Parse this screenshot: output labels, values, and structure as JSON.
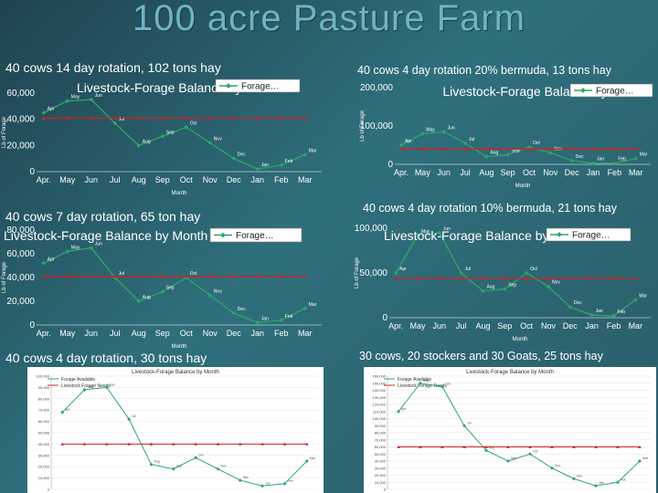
{
  "slide_title": "100 acre Pasture Farm",
  "months": [
    "Apr.",
    "May",
    "Jun",
    "Jul",
    "Aug",
    "Sep",
    "Oct",
    "Nov",
    "Dec",
    "Jan",
    "Feb",
    "Mar"
  ],
  "point_months": [
    "Apr",
    "May",
    "Jun",
    "Jul",
    "Aug",
    "Sep",
    "Oct",
    "Nov",
    "Dec",
    "Jan",
    "Feb",
    "Mar"
  ],
  "legend": {
    "forage": "Forage…",
    "forage_available": "Forage Available",
    "livestock_needs": "Livestock Forage Needs"
  },
  "colors": {
    "forage": "#2fa66a",
    "needs": "#d42020"
  },
  "chart_data": [
    {
      "id": "p1",
      "type": "line",
      "caption": "40 cows 14 day rotation, 102 tons hay",
      "title": "Livestock-Forage Balance by Month",
      "xlabel": "Month",
      "ylabel": "Lb of Forage",
      "ylim": [
        0,
        60000
      ],
      "yticks": [
        0,
        20000,
        40000,
        60000
      ],
      "ytick_labels": [
        "0",
        "20,000",
        "40,000",
        "60,000"
      ],
      "series": [
        {
          "key": "forage",
          "values": [
            45000,
            54000,
            55000,
            37000,
            20000,
            27000,
            34000,
            22000,
            10000,
            2000,
            5000,
            13000
          ]
        },
        {
          "key": "needs",
          "values": [
            41000,
            41000,
            41000,
            41000,
            41000,
            41000,
            41000,
            41000,
            41000,
            41000,
            41000,
            41000
          ]
        }
      ]
    },
    {
      "id": "p2",
      "type": "line",
      "caption": "40 cows 4 day rotation 20% bermuda, 13 tons hay",
      "title": "Livestock-Forage Balance by Month",
      "xlabel": "Month",
      "ylabel": "Lb of Forage",
      "ylim": [
        0,
        200000
      ],
      "yticks": [
        0,
        100000,
        200000
      ],
      "ytick_labels": [
        "0",
        "100,000",
        "200,000"
      ],
      "series": [
        {
          "key": "forage",
          "values": [
            50000,
            80000,
            85000,
            55000,
            20000,
            25000,
            45000,
            30000,
            10000,
            3000,
            3000,
            15000
          ]
        },
        {
          "key": "needs",
          "values": [
            40000,
            40000,
            40000,
            40000,
            40000,
            40000,
            40000,
            40000,
            40000,
            40000,
            40000,
            40000
          ]
        }
      ]
    },
    {
      "id": "p3",
      "type": "line",
      "caption": "40 cows 7 day rotation, 65 ton hay",
      "title": "Livestock-Forage Balance by Month",
      "xlabel": "Month",
      "ylabel": "Lb of Forage",
      "ylim": [
        0,
        80000
      ],
      "yticks": [
        0,
        20000,
        40000,
        60000,
        80000
      ],
      "ytick_labels": [
        "0",
        "20,000",
        "40,000",
        "60,000",
        "80,000"
      ],
      "series": [
        {
          "key": "forage",
          "values": [
            52000,
            62000,
            65000,
            40000,
            20000,
            28000,
            40000,
            25000,
            10000,
            2000,
            4000,
            14000
          ]
        },
        {
          "key": "needs",
          "values": [
            41000,
            41000,
            41000,
            41000,
            41000,
            41000,
            41000,
            41000,
            41000,
            41000,
            41000,
            41000
          ]
        }
      ]
    },
    {
      "id": "p4",
      "type": "line",
      "caption": "40 cows 4 day rotation 10% bermuda, 21 tons hay",
      "title": "Livestock-Forage Balance by Month",
      "xlabel": "Month",
      "ylabel": "Lb of Forage",
      "ylim": [
        0,
        100000
      ],
      "yticks": [
        0,
        50000,
        100000
      ],
      "ytick_labels": [
        "0",
        "50,000",
        "100,000"
      ],
      "series": [
        {
          "key": "forage",
          "values": [
            50000,
            92000,
            95000,
            50000,
            30000,
            32000,
            50000,
            35000,
            12000,
            3000,
            2000,
            20000
          ]
        },
        {
          "key": "needs",
          "values": [
            44000,
            44000,
            44000,
            44000,
            44000,
            44000,
            44000,
            44000,
            44000,
            44000,
            44000,
            44000
          ]
        }
      ]
    },
    {
      "id": "p5",
      "type": "line",
      "caption": "40 cows 4 day rotation, 30 tons hay",
      "title": "Livestock-Forage Balance by Month",
      "xlabel": "",
      "ylabel": "",
      "ylim": [
        0,
        100000
      ],
      "yticks": [
        0,
        10000,
        20000,
        30000,
        40000,
        50000,
        60000,
        70000,
        80000,
        90000,
        100000
      ],
      "ytick_labels": [
        "0",
        "10,000",
        "20,000",
        "30,000",
        "40,000",
        "50,000",
        "60,000",
        "70,000",
        "80,000",
        "90,000",
        "100,000"
      ],
      "series": [
        {
          "key": "forage_available",
          "values": [
            68000,
            88000,
            90000,
            62000,
            22000,
            18000,
            28000,
            18000,
            8000,
            3000,
            5000,
            25000
          ]
        },
        {
          "key": "livestock_needs",
          "values": [
            40000,
            40000,
            40000,
            40000,
            40000,
            40000,
            40000,
            40000,
            40000,
            40000,
            40000,
            40000
          ]
        }
      ]
    },
    {
      "id": "p6",
      "type": "line",
      "caption": "30 cows, 20 stockers and 30 Goats, 25 tons hay",
      "title": "Livestock-Forage Balance by Month",
      "xlabel": "",
      "ylabel": "",
      "ylim": [
        0,
        160000
      ],
      "yticks": [
        0,
        10000,
        20000,
        30000,
        40000,
        50000,
        60000,
        70000,
        80000,
        90000,
        100000,
        110000,
        120000,
        130000,
        140000,
        150000,
        160000
      ],
      "ytick_labels": [
        "0",
        "10,000",
        "20,000",
        "30,000",
        "40,000",
        "50,000",
        "60,000",
        "70,000",
        "80,000",
        "90,000",
        "100,000",
        "110,000",
        "120,000",
        "130,000",
        "140,000",
        "150,000",
        "160,000"
      ],
      "series": [
        {
          "key": "forage_available",
          "values": [
            110000,
            150000,
            145000,
            90000,
            55000,
            40000,
            50000,
            30000,
            15000,
            5000,
            10000,
            40000
          ]
        },
        {
          "key": "livestock_needs",
          "values": [
            60000,
            60000,
            60000,
            60000,
            60000,
            60000,
            60000,
            60000,
            60000,
            60000,
            60000,
            60000
          ]
        }
      ]
    }
  ]
}
